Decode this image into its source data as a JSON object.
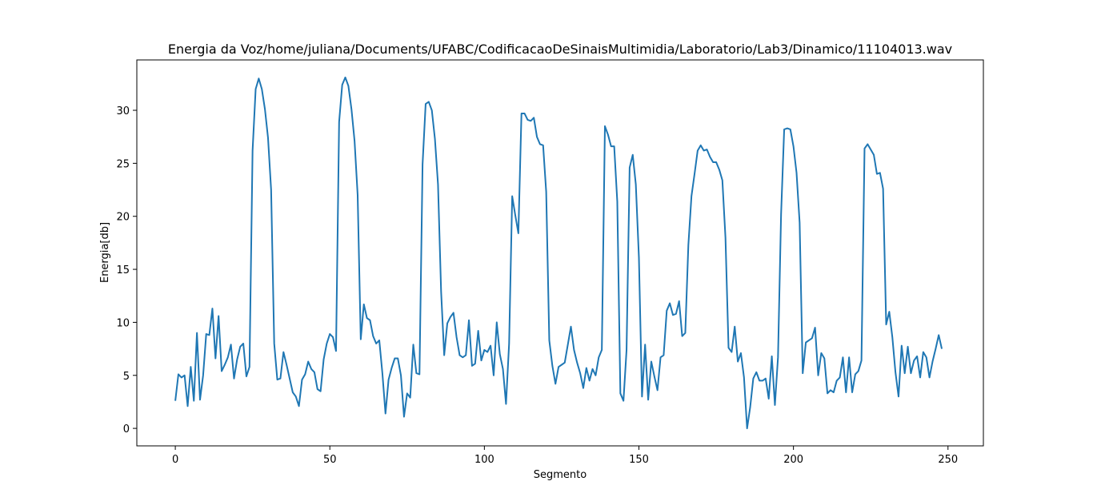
{
  "chart_data": {
    "type": "line",
    "title": "Energia da Voz/home/juliana/Documents/UFABC/CodificacaoDeSinaisMultimidia/Laboratorio/Lab3/Dinamico/11104013.wav",
    "xlabel": "Segmento",
    "ylabel": "Energia[db]",
    "xlim": [
      -12.45,
      261.45
    ],
    "ylim": [
      -1.65,
      34.75
    ],
    "xticks": [
      0,
      50,
      100,
      150,
      200,
      250
    ],
    "yticks": [
      0,
      5,
      10,
      15,
      20,
      25,
      30
    ],
    "xtick_labels": [
      "0",
      "50",
      "100",
      "150",
      "200",
      "250"
    ],
    "ytick_labels": [
      "0",
      "5",
      "10",
      "15",
      "20",
      "25",
      "30"
    ],
    "grid": false,
    "color": "#1f77b4",
    "series": [
      {
        "x_start": 0,
        "values": [
          2.6,
          5.1,
          4.8,
          5.0,
          2.1,
          5.8,
          2.6,
          9.0,
          2.7,
          5.0,
          8.9,
          8.8,
          11.3,
          6.6,
          10.6,
          5.4,
          6.0,
          6.7,
          7.9,
          4.7,
          6.5,
          7.7,
          8.0,
          4.9,
          5.8,
          26.2,
          32.0,
          33.0,
          32.0,
          30.1,
          27.4,
          22.5,
          8.0,
          4.6,
          4.7,
          7.2,
          6.0,
          4.7,
          3.4,
          3.0,
          2.1,
          4.6,
          5.1,
          6.3,
          5.6,
          5.3,
          3.7,
          3.5,
          6.5,
          8.0,
          8.9,
          8.6,
          7.3,
          28.9,
          32.4,
          33.1,
          32.3,
          30.1,
          27.1,
          22.0,
          8.4,
          11.7,
          10.4,
          10.2,
          8.7,
          8.0,
          8.3,
          5.2,
          1.4,
          4.6,
          5.7,
          6.6,
          6.6,
          5.0,
          1.1,
          3.3,
          2.9,
          7.9,
          5.2,
          5.1,
          24.9,
          30.6,
          30.8,
          30.0,
          27.3,
          23.0,
          12.9,
          6.9,
          9.9,
          10.5,
          10.9,
          8.6,
          6.9,
          6.7,
          6.9,
          10.2,
          5.9,
          6.1,
          9.2,
          6.4,
          7.4,
          7.2,
          7.8,
          5.0,
          10.0,
          7.0,
          5.6,
          2.3,
          8.0,
          21.9,
          20.1,
          18.4,
          29.7,
          29.7,
          29.1,
          29.0,
          29.3,
          27.5,
          26.8,
          26.7,
          22.3,
          8.3,
          5.9,
          4.2,
          5.8,
          6.0,
          6.2,
          7.9,
          9.6,
          7.4,
          6.2,
          5.2,
          3.8,
          5.7,
          4.5,
          5.6,
          5.0,
          6.7,
          7.4,
          28.5,
          27.7,
          26.6,
          26.6,
          21.4,
          3.3,
          2.6,
          7.4,
          24.6,
          25.8,
          23.0,
          16.1,
          3.0,
          7.9,
          2.7,
          6.3,
          4.9,
          3.6,
          6.7,
          6.9,
          11.1,
          11.8,
          10.7,
          10.8,
          12.0,
          8.7,
          9.0,
          17.3,
          21.9,
          24.0,
          26.2,
          26.7,
          26.2,
          26.3,
          25.6,
          25.1,
          25.1,
          24.4,
          23.4,
          18.0,
          7.6,
          7.2,
          9.6,
          6.3,
          7.1,
          4.8,
          0.0,
          2.0,
          4.7,
          5.3,
          4.5,
          4.5,
          4.7,
          2.8,
          6.8,
          2.2,
          6.7,
          20.2,
          28.2,
          28.3,
          28.2,
          26.6,
          24.1,
          19.4,
          5.2,
          8.1,
          8.3,
          8.5,
          9.5,
          5.0,
          7.1,
          6.6,
          3.3,
          3.6,
          3.4,
          4.5,
          4.8,
          6.7,
          3.4,
          6.7,
          3.4,
          5.1,
          5.4,
          6.4,
          26.4,
          26.8,
          26.3,
          25.8,
          24.0,
          24.1,
          22.6,
          9.8,
          11.0,
          8.6,
          5.3,
          3.0,
          7.8,
          5.2,
          7.7,
          5.2,
          6.4,
          6.8,
          4.8,
          7.2,
          6.7,
          4.8,
          6.3,
          7.5,
          8.8,
          7.5
        ]
      }
    ]
  }
}
